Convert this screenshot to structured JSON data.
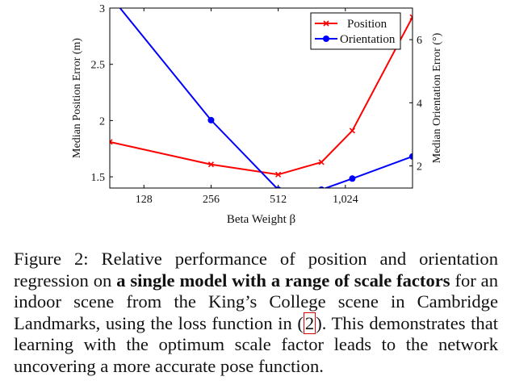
{
  "chart_data": {
    "type": "line",
    "xlabel": "Beta Weight β",
    "ylabel_left": "Median Position Error (m)",
    "ylabel_right": "Median Orientation Error (°)",
    "x_scale": "log2",
    "x_ticks": [
      128,
      256,
      512,
      1024
    ],
    "x_tick_labels": [
      "128",
      "256",
      "512",
      "1,024"
    ],
    "xlim": [
      90,
      2048
    ],
    "left_ylim": [
      1.4,
      3.0
    ],
    "left_ticks": [
      1.5,
      2,
      2.5,
      3
    ],
    "left_tick_labels": [
      "1.5",
      "2",
      "2.5",
      "3"
    ],
    "right_ylim": [
      1.3,
      7.0
    ],
    "right_ticks": [
      2,
      4,
      6
    ],
    "right_tick_labels": [
      "2",
      "4",
      "6"
    ],
    "legend_position": "top-right",
    "series": [
      {
        "name": "Position",
        "axis": "left",
        "color": "#ff0000",
        "marker": "x",
        "x": [
          90,
          256,
          512,
          800,
          1100,
          2048
        ],
        "y": [
          1.81,
          1.61,
          1.52,
          1.63,
          1.91,
          2.92
        ]
      },
      {
        "name": "Orientation",
        "axis": "right",
        "color": "#0000ff",
        "marker": "circle",
        "x": [
          90,
          256,
          512,
          800,
          1100,
          2048
        ],
        "y": [
          7.4,
          3.45,
          1.25,
          1.25,
          1.6,
          2.3
        ]
      }
    ]
  },
  "caption": {
    "part1": "Figure 2: Relative performance of position and orientation regression on ",
    "bold": "a single model with a range of scale factors",
    "part2": " for an indoor scene from the King’s College scene in Cambridge Landmarks, using the loss function in (",
    "ref": "2",
    "part3": "). This demonstrates that learning with the optimum scale factor leads to the network uncovering a more accurate pose function."
  }
}
